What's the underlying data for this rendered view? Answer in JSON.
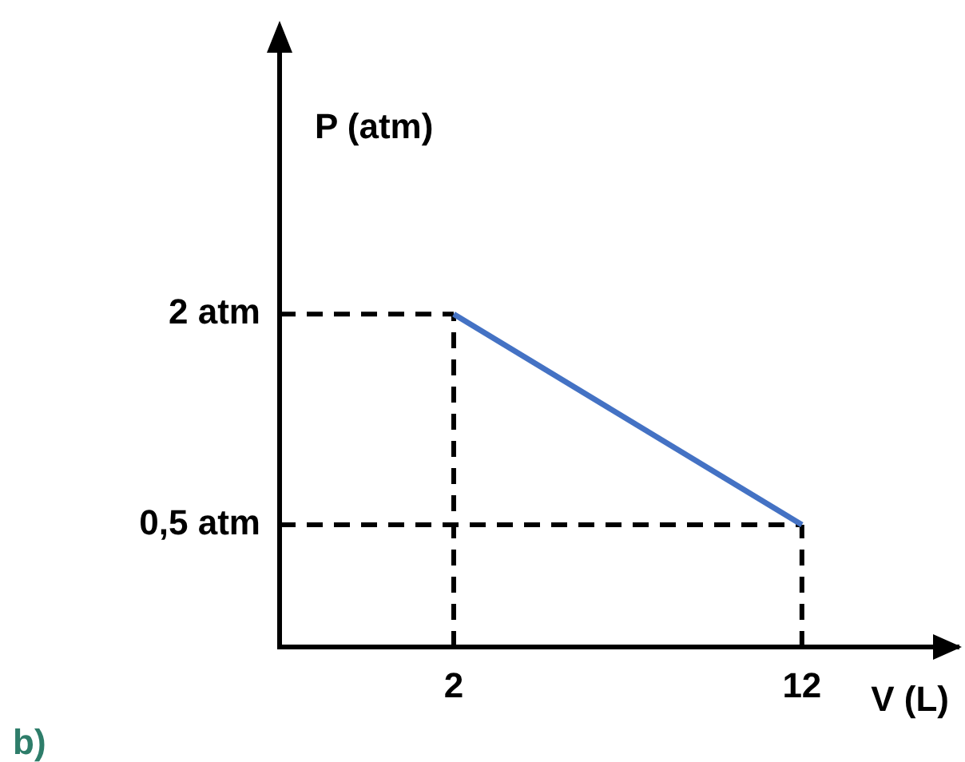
{
  "chart_data": {
    "type": "line",
    "xlabel": "V (L)",
    "ylabel": "P (atm)",
    "annotations": [
      "b)"
    ],
    "x": [
      2,
      12
    ],
    "series": [
      {
        "color": "#4472c4",
        "values": [
          2,
          0.5
        ]
      }
    ],
    "xlim": [
      -3,
      16.5
    ],
    "ylim": [
      -0.37,
      3.95
    ],
    "xticks": [
      2,
      12
    ],
    "yticks": [
      {
        "value": 0.5,
        "label": "0,5 atm"
      },
      {
        "value": 2,
        "label": "2 atm"
      }
    ],
    "ref_lines": [
      {
        "axis": "x",
        "value": 2,
        "line_style": "dashed",
        "color": "#000000"
      },
      {
        "axis": "x",
        "value": 12,
        "line_style": "dashed",
        "color": "#000000"
      },
      {
        "axis": "y",
        "value": 2,
        "line_style": "dashed",
        "color": "#000000"
      },
      {
        "axis": "y",
        "value": 0.5,
        "line_style": "dashed",
        "color": "#000000"
      }
    ],
    "marker": "none",
    "line_style": "solid",
    "grid": false,
    "legend": false
  }
}
